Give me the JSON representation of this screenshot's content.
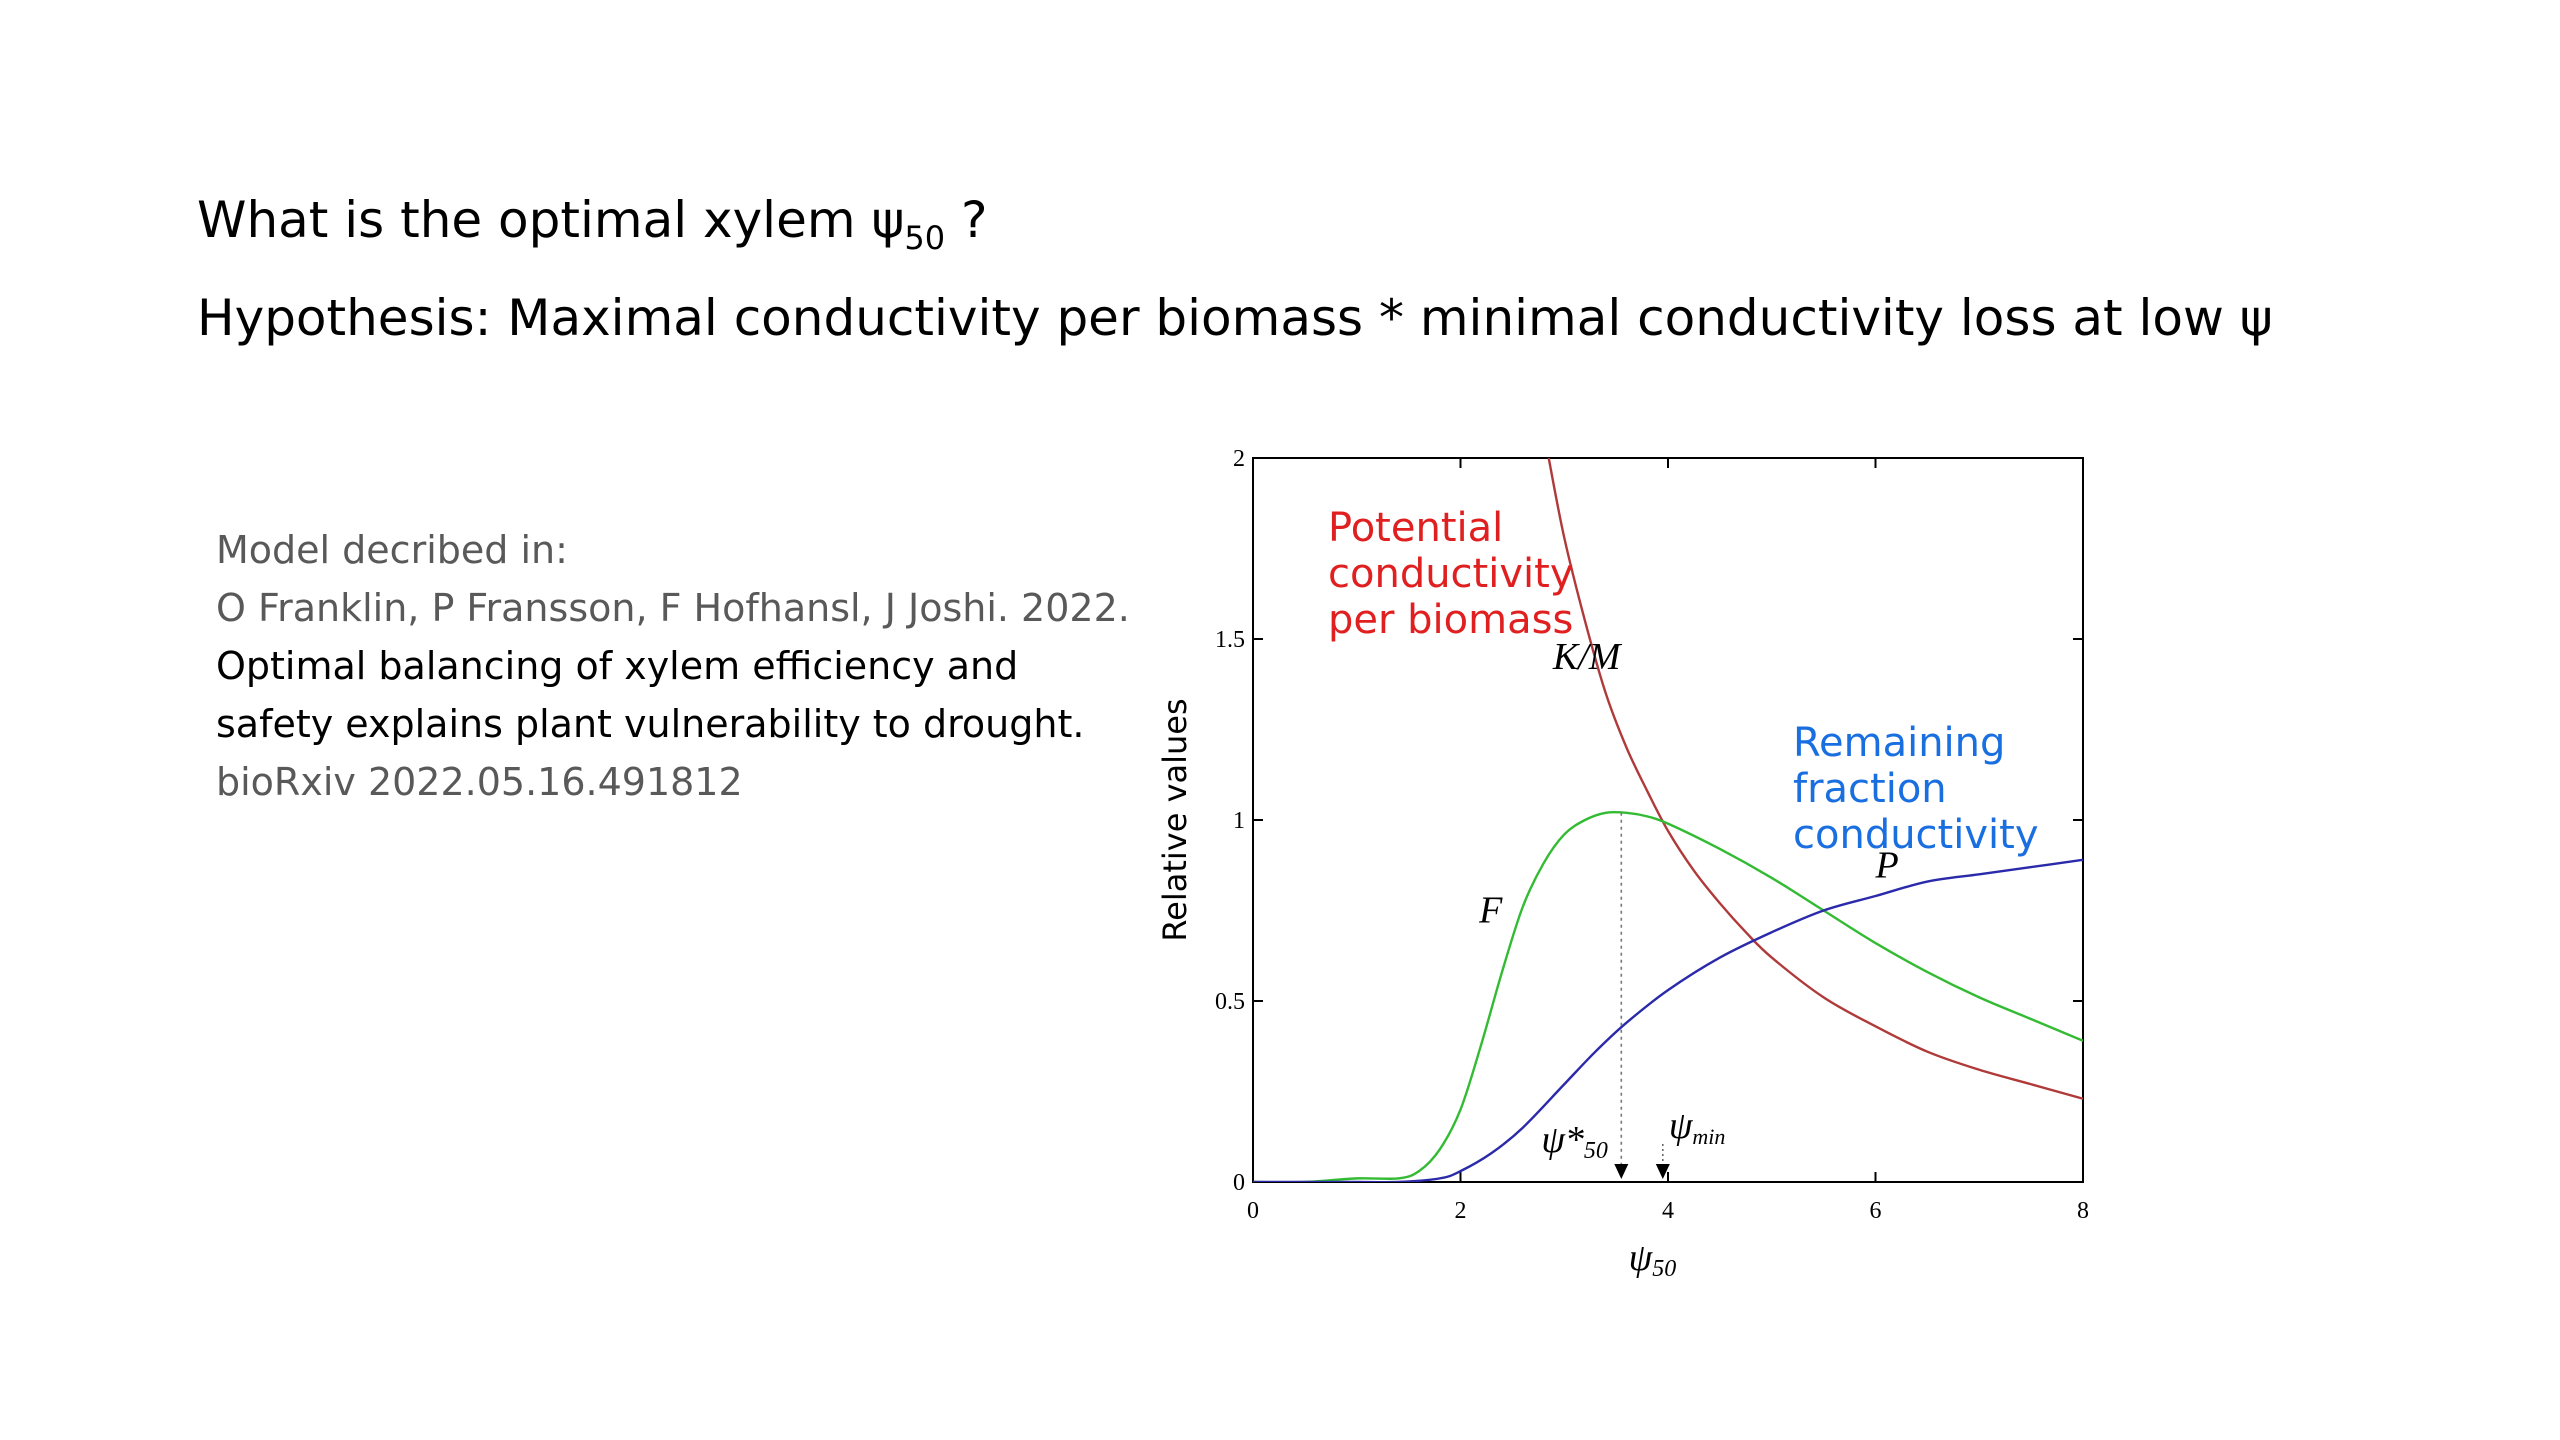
{
  "slide": {
    "title_line1_prefix": "What is the optimal xylem ψ",
    "title_line1_sub": "50",
    "title_line1_suffix": " ?",
    "title_line2": "Hypothesis: Maximal conductivity per biomass * minimal conductivity loss at low ψ",
    "reference": {
      "line1": "Model decribed in:",
      "authors": "O Franklin, P Fransson, F Hofhansl, J Joshi. 2022.",
      "paper_title": "Optimal balancing of xylem efficiency and safety explains plant vulnerability to drought.",
      "source": "bioRxiv 2022.05.16.491812"
    }
  },
  "colors": {
    "km": "#b03a3a",
    "f": "#33bb33",
    "p": "#2a2aaa",
    "potential_label": "#e02020",
    "remaining_label": "#1a6fe0"
  },
  "chart_data": {
    "type": "line",
    "xlabel": "ψ50",
    "ylabel": "Relative values",
    "xlim": [
      0,
      8
    ],
    "ylim": [
      0,
      2
    ],
    "xticks": [
      "0",
      "2",
      "4",
      "6",
      "8"
    ],
    "yticks": [
      "0",
      "0.5",
      "1",
      "1.5",
      "2"
    ],
    "grid": false,
    "series": [
      {
        "name": "K/M",
        "color_key": "km",
        "x": [
          2.85,
          3.0,
          3.2,
          3.4,
          3.6,
          3.8,
          4.0,
          4.25,
          4.5,
          4.75,
          5.0,
          5.5,
          6.0,
          6.5,
          7.0,
          7.5,
          8.0
        ],
        "y": [
          2.0,
          1.78,
          1.55,
          1.35,
          1.2,
          1.08,
          0.97,
          0.86,
          0.77,
          0.69,
          0.62,
          0.51,
          0.43,
          0.36,
          0.31,
          0.27,
          0.23
        ]
      },
      {
        "name": "F",
        "color_key": "f",
        "x": [
          0.0,
          0.5,
          1.0,
          1.4,
          1.6,
          1.8,
          2.0,
          2.2,
          2.4,
          2.6,
          2.8,
          3.0,
          3.2,
          3.4,
          3.6,
          3.8,
          4.0,
          4.5,
          5.0,
          5.5,
          6.0,
          6.5,
          7.0,
          7.5,
          8.0
        ],
        "y": [
          0.0,
          0.0,
          0.01,
          0.01,
          0.03,
          0.09,
          0.2,
          0.38,
          0.58,
          0.76,
          0.88,
          0.96,
          1.0,
          1.02,
          1.02,
          1.01,
          0.99,
          0.92,
          0.84,
          0.75,
          0.66,
          0.58,
          0.51,
          0.45,
          0.39
        ]
      },
      {
        "name": "P",
        "color_key": "p",
        "x": [
          0.0,
          1.0,
          1.4,
          1.8,
          2.0,
          2.3,
          2.6,
          3.0,
          3.3,
          3.6,
          4.0,
          4.5,
          5.0,
          5.5,
          6.0,
          6.5,
          7.0,
          7.5,
          8.0
        ],
        "y": [
          0.0,
          0.0,
          0.0,
          0.01,
          0.03,
          0.08,
          0.15,
          0.27,
          0.36,
          0.44,
          0.53,
          0.62,
          0.69,
          0.75,
          0.79,
          0.83,
          0.85,
          0.87,
          0.89
        ]
      }
    ],
    "annotations": {
      "km_label": "K/M",
      "f_label": "F",
      "p_label": "P",
      "potential_label": [
        "Potential",
        "conductivity",
        "per biomass"
      ],
      "remaining_label": [
        "Remaining",
        "fraction",
        "conductivity"
      ],
      "psi_opt_sym": "ψ*",
      "psi_opt_sub": "50",
      "psi_opt_x": 3.55,
      "psi_min_sym": "ψ",
      "psi_min_sub": "min",
      "psi_min_x": 3.95
    }
  }
}
